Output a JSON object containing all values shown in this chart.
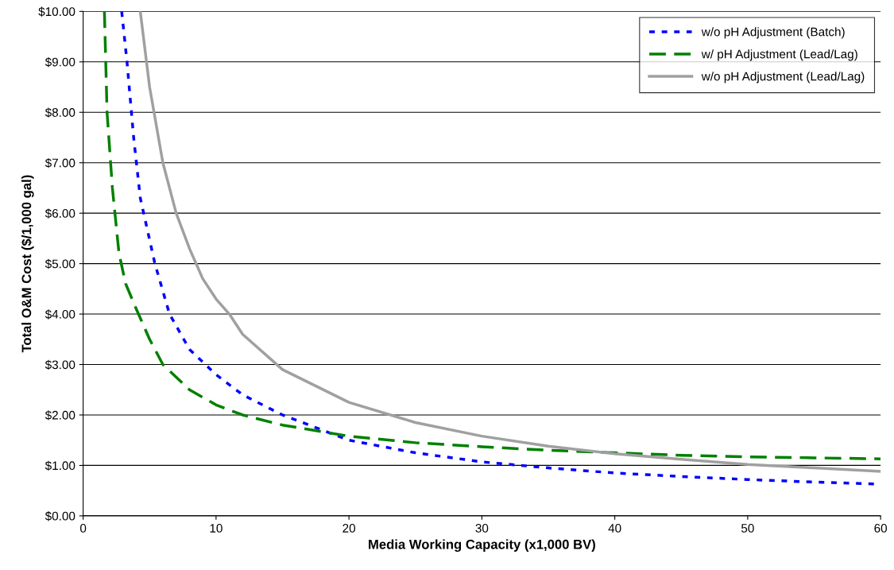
{
  "chart_data": {
    "type": "line",
    "xlabel": "Media Working Capacity (x1,000 BV)",
    "ylabel": "Total O&M Cost ($/1,000 gal)",
    "xlim": [
      0,
      60
    ],
    "xticks": [
      0,
      10,
      20,
      30,
      40,
      50,
      60
    ],
    "ylim": [
      0,
      10
    ],
    "yticks": [
      {
        "value": 0,
        "label": "$0.00"
      },
      {
        "value": 1,
        "label": "$1.00"
      },
      {
        "value": 2,
        "label": "$2.00"
      },
      {
        "value": 3,
        "label": "$3.00"
      },
      {
        "value": 4,
        "label": "$4.00"
      },
      {
        "value": 5,
        "label": "$5.00"
      },
      {
        "value": 6,
        "label": "$6.00"
      },
      {
        "value": 7,
        "label": "$7.00"
      },
      {
        "value": 8,
        "label": "$8.00"
      },
      {
        "value": 9,
        "label": "$9.00"
      },
      {
        "value": 10,
        "label": "$10.00"
      }
    ],
    "grid": "y",
    "legend": "top right",
    "marker": "none",
    "series": [
      {
        "name": "w/o pH Adjustment (Batch)",
        "color": "#0000ff",
        "line_style": "dotted",
        "x": [
          2.9,
          3.3,
          3.8,
          4.3,
          5.4,
          6.5,
          8,
          10,
          12,
          15,
          20,
          25,
          30,
          35,
          40,
          45,
          50,
          55,
          60
        ],
        "values": [
          10,
          9,
          7.5,
          6.3,
          5.0,
          4.0,
          3.3,
          2.8,
          2.4,
          2.0,
          1.5,
          1.25,
          1.07,
          0.95,
          0.85,
          0.78,
          0.72,
          0.67,
          0.63
        ]
      },
      {
        "name": "w/ pH Adjustment (Lead/Lag)",
        "color": "#008000",
        "line_style": "dashed",
        "x": [
          1.6,
          1.8,
          2.2,
          2.7,
          3.2,
          4,
          5,
          6,
          8,
          10,
          12,
          15,
          20,
          25,
          30,
          35,
          40,
          45,
          50,
          55,
          60
        ],
        "values": [
          10,
          8,
          6.5,
          5.2,
          4.6,
          4.1,
          3.5,
          3.0,
          2.5,
          2.2,
          2.0,
          1.8,
          1.58,
          1.45,
          1.37,
          1.3,
          1.25,
          1.2,
          1.17,
          1.15,
          1.13
        ]
      },
      {
        "name": "w/o pH Adjustment (Lead/Lag)",
        "color": "#a0a0a0",
        "line_style": "solid",
        "x": [
          4.3,
          5,
          6,
          7,
          8,
          9,
          10,
          11,
          12,
          15,
          20,
          25,
          30,
          35,
          40,
          45,
          50,
          55,
          60
        ],
        "values": [
          10,
          8.5,
          7.0,
          6.0,
          5.3,
          4.7,
          4.3,
          4.0,
          3.6,
          2.9,
          2.25,
          1.85,
          1.58,
          1.38,
          1.23,
          1.12,
          1.02,
          0.95,
          0.88
        ]
      }
    ]
  }
}
